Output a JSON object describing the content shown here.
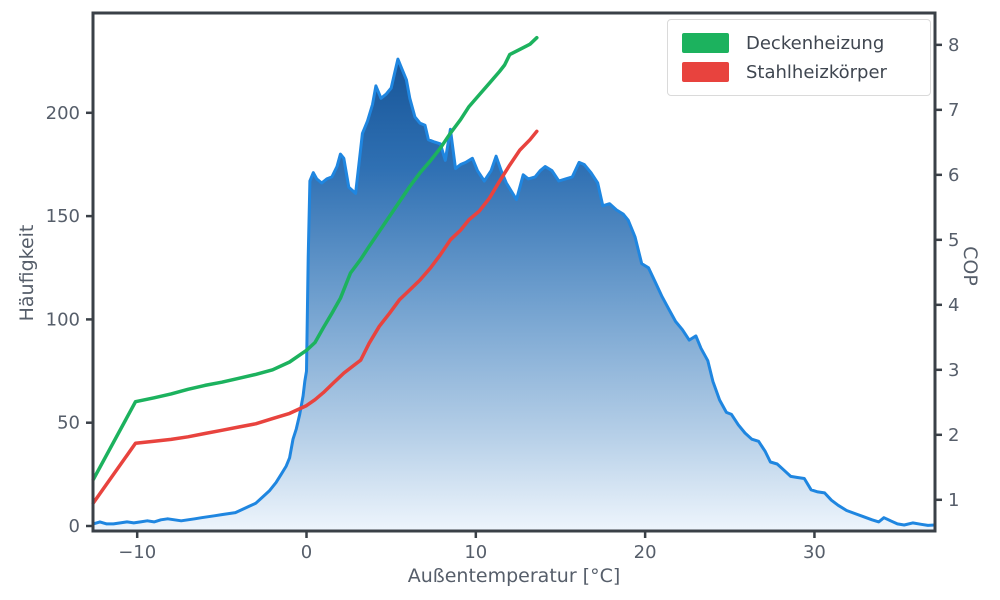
{
  "chart_data": {
    "type": "combo-histogram-line",
    "title": "",
    "xlabel": "Außentemperatur [°C]",
    "ylabel_left": "Häufigkeit",
    "ylabel_right": "COP",
    "xlim": [
      -12.61,
      37.12
    ],
    "ylim_left": [
      -2.42,
      248.31
    ],
    "ylim_right": [
      0.52,
      8.49
    ],
    "xticks": [
      -10,
      0,
      10,
      20,
      30
    ],
    "xtick_labels": [
      "−10",
      "0",
      "10",
      "20",
      "30"
    ],
    "yticks_left": [
      0,
      50,
      100,
      150,
      200
    ],
    "ytick_left_labels": [
      "0",
      "50",
      "100",
      "150",
      "200"
    ],
    "yticks_right": [
      1,
      2,
      3,
      4,
      5,
      6,
      7,
      8
    ],
    "ytick_right_labels": [
      "1",
      "2",
      "3",
      "4",
      "5",
      "6",
      "7",
      "8"
    ],
    "grid": false,
    "legend_position": "upper right",
    "histogram": {
      "name": "Häufigkeit (Außentemperatur)",
      "axis": "left",
      "line_color": "#1f86e0",
      "points": [
        [
          -12.6,
          1
        ],
        [
          -12.2,
          2
        ],
        [
          -11.8,
          1
        ],
        [
          -11.4,
          1
        ],
        [
          -11,
          1.5
        ],
        [
          -10.6,
          2
        ],
        [
          -10.2,
          1.5
        ],
        [
          -9.8,
          2
        ],
        [
          -9.4,
          2.5
        ],
        [
          -9,
          2
        ],
        [
          -8.6,
          3
        ],
        [
          -8.2,
          3.5
        ],
        [
          -7.8,
          3
        ],
        [
          -7.4,
          2.5
        ],
        [
          -7,
          3
        ],
        [
          -6.6,
          3.5
        ],
        [
          -6.2,
          4
        ],
        [
          -5.8,
          4.5
        ],
        [
          -5.4,
          5
        ],
        [
          -5,
          5.5
        ],
        [
          -4.6,
          6
        ],
        [
          -4.2,
          6.5
        ],
        [
          -3.8,
          8
        ],
        [
          -3.4,
          9.5
        ],
        [
          -3,
          11
        ],
        [
          -2.6,
          14
        ],
        [
          -2.2,
          17
        ],
        [
          -1.8,
          21
        ],
        [
          -1.5,
          25
        ],
        [
          -1.2,
          29
        ],
        [
          -1,
          33
        ],
        [
          -0.8,
          42
        ],
        [
          -0.6,
          47
        ],
        [
          -0.4,
          54
        ],
        [
          -0.2,
          63
        ],
        [
          -0.1,
          70
        ],
        [
          0,
          75
        ],
        [
          0.1,
          130
        ],
        [
          0.2,
          167
        ],
        [
          0.4,
          171
        ],
        [
          0.6,
          168
        ],
        [
          0.9,
          166
        ],
        [
          1.2,
          168
        ],
        [
          1.5,
          169
        ],
        [
          1.8,
          174
        ],
        [
          2,
          180
        ],
        [
          2.2,
          178
        ],
        [
          2.5,
          164
        ],
        [
          2.9,
          161
        ],
        [
          3.3,
          190
        ],
        [
          3.6,
          196
        ],
        [
          3.9,
          204
        ],
        [
          4.1,
          213
        ],
        [
          4.4,
          207
        ],
        [
          4.7,
          209
        ],
        [
          5,
          212
        ],
        [
          5.2,
          219
        ],
        [
          5.4,
          226
        ],
        [
          5.6,
          222
        ],
        [
          5.9,
          216
        ],
        [
          6.1,
          207
        ],
        [
          6.4,
          198
        ],
        [
          6.7,
          195
        ],
        [
          7,
          194
        ],
        [
          7.2,
          187
        ],
        [
          7.5,
          186
        ],
        [
          7.9,
          185
        ],
        [
          8.2,
          177
        ],
        [
          8.5,
          192
        ],
        [
          8.8,
          173
        ],
        [
          9.1,
          175
        ],
        [
          9.4,
          176
        ],
        [
          9.8,
          178
        ],
        [
          10.1,
          172
        ],
        [
          10.5,
          167
        ],
        [
          10.9,
          172
        ],
        [
          11.2,
          179
        ],
        [
          11.5,
          172
        ],
        [
          11.8,
          166
        ],
        [
          12.1,
          162
        ],
        [
          12.4,
          158
        ],
        [
          12.8,
          170
        ],
        [
          13.1,
          168
        ],
        [
          13.5,
          169
        ],
        [
          13.8,
          172
        ],
        [
          14.1,
          174
        ],
        [
          14.5,
          172
        ],
        [
          14.9,
          167
        ],
        [
          15.3,
          168
        ],
        [
          15.7,
          169
        ],
        [
          16.1,
          176
        ],
        [
          16.4,
          175
        ],
        [
          16.8,
          171
        ],
        [
          17.2,
          166
        ],
        [
          17.5,
          155
        ],
        [
          17.9,
          156
        ],
        [
          18.3,
          153
        ],
        [
          18.7,
          151
        ],
        [
          19,
          148
        ],
        [
          19.4,
          140
        ],
        [
          19.8,
          127
        ],
        [
          20.2,
          125
        ],
        [
          20.6,
          118
        ],
        [
          21,
          111
        ],
        [
          21.4,
          105
        ],
        [
          21.8,
          99
        ],
        [
          22.2,
          95
        ],
        [
          22.6,
          90
        ],
        [
          23,
          92
        ],
        [
          23.3,
          86
        ],
        [
          23.7,
          80
        ],
        [
          24,
          70
        ],
        [
          24.4,
          61
        ],
        [
          24.8,
          55
        ],
        [
          25.1,
          54
        ],
        [
          25.5,
          49
        ],
        [
          25.9,
          45
        ],
        [
          26.3,
          42
        ],
        [
          26.7,
          41
        ],
        [
          27.1,
          36
        ],
        [
          27.4,
          31
        ],
        [
          27.8,
          30
        ],
        [
          28.2,
          27
        ],
        [
          28.6,
          24
        ],
        [
          29,
          23.5
        ],
        [
          29.4,
          23
        ],
        [
          29.8,
          17.5
        ],
        [
          30.2,
          16.5
        ],
        [
          30.6,
          16
        ],
        [
          31,
          12.5
        ],
        [
          31.4,
          10
        ],
        [
          31.9,
          7.5
        ],
        [
          32.4,
          6
        ],
        [
          32.9,
          4.5
        ],
        [
          33.4,
          3
        ],
        [
          33.8,
          2
        ],
        [
          34.1,
          4
        ],
        [
          34.5,
          2.5
        ],
        [
          34.9,
          1
        ],
        [
          35.3,
          0.5
        ],
        [
          35.8,
          1.5
        ],
        [
          36.3,
          0.8
        ],
        [
          36.7,
          0.3
        ],
        [
          37.1,
          0.5
        ]
      ]
    },
    "series": [
      {
        "name": "Deckenheizung",
        "axis": "right",
        "color": "#1cb25e",
        "points": [
          [
            -12.6,
            1.31
          ],
          [
            -10.1,
            2.51
          ],
          [
            -9,
            2.57
          ],
          [
            -8,
            2.63
          ],
          [
            -7,
            2.7
          ],
          [
            -6,
            2.76
          ],
          [
            -5,
            2.81
          ],
          [
            -4,
            2.87
          ],
          [
            -3,
            2.93
          ],
          [
            -2,
            3.0
          ],
          [
            -1,
            3.12
          ],
          [
            0,
            3.3
          ],
          [
            0.5,
            3.42
          ],
          [
            1,
            3.65
          ],
          [
            1.5,
            3.87
          ],
          [
            2,
            4.1
          ],
          [
            2.6,
            4.49
          ],
          [
            3.2,
            4.7
          ],
          [
            3.7,
            4.9
          ],
          [
            4.3,
            5.13
          ],
          [
            4.9,
            5.36
          ],
          [
            5.5,
            5.59
          ],
          [
            6.1,
            5.82
          ],
          [
            6.7,
            6.03
          ],
          [
            7.3,
            6.21
          ],
          [
            7.9,
            6.41
          ],
          [
            8.5,
            6.64
          ],
          [
            9.1,
            6.85
          ],
          [
            9.6,
            7.05
          ],
          [
            10.2,
            7.23
          ],
          [
            10.8,
            7.41
          ],
          [
            11.4,
            7.59
          ],
          [
            11.7,
            7.69
          ],
          [
            12,
            7.85
          ],
          [
            12.6,
            7.93
          ],
          [
            13.2,
            8.01
          ],
          [
            13.6,
            8.11
          ]
        ]
      },
      {
        "name": "Stahlheizkörper",
        "axis": "right",
        "color": "#e8433e",
        "points": [
          [
            -12.6,
            0.95
          ],
          [
            -10.1,
            1.87
          ],
          [
            -9,
            1.9
          ],
          [
            -8,
            1.93
          ],
          [
            -7,
            1.97
          ],
          [
            -6,
            2.02
          ],
          [
            -5,
            2.07
          ],
          [
            -4,
            2.12
          ],
          [
            -3,
            2.17
          ],
          [
            -2,
            2.25
          ],
          [
            -1,
            2.33
          ],
          [
            0,
            2.45
          ],
          [
            0.5,
            2.54
          ],
          [
            1,
            2.65
          ],
          [
            1.6,
            2.8
          ],
          [
            2.2,
            2.95
          ],
          [
            2.7,
            3.05
          ],
          [
            3.2,
            3.15
          ],
          [
            3.7,
            3.41
          ],
          [
            4.3,
            3.67
          ],
          [
            4.9,
            3.87
          ],
          [
            5.5,
            4.08
          ],
          [
            6.1,
            4.23
          ],
          [
            6.7,
            4.38
          ],
          [
            7.3,
            4.56
          ],
          [
            7.9,
            4.77
          ],
          [
            8.5,
            5.0
          ],
          [
            9.1,
            5.15
          ],
          [
            9.6,
            5.31
          ],
          [
            10.2,
            5.44
          ],
          [
            10.8,
            5.64
          ],
          [
            11.4,
            5.9
          ],
          [
            12,
            6.15
          ],
          [
            12.6,
            6.38
          ],
          [
            13.2,
            6.54
          ],
          [
            13.6,
            6.67
          ]
        ]
      }
    ],
    "legend_entries": [
      "Deckenheizung",
      "Stahlheizkörper"
    ],
    "colors": {
      "axis": "#3a4047",
      "tick_text": "#565e6a",
      "hist_line": "#1f86e0",
      "green": "#1cb25e",
      "red": "#e8433e",
      "gradient_stops": [
        "#0d4a8d",
        "#2f70b3",
        "#6f9fce",
        "#b7d0e8",
        "#eef5fc"
      ],
      "legend_border": "#dadada"
    }
  }
}
